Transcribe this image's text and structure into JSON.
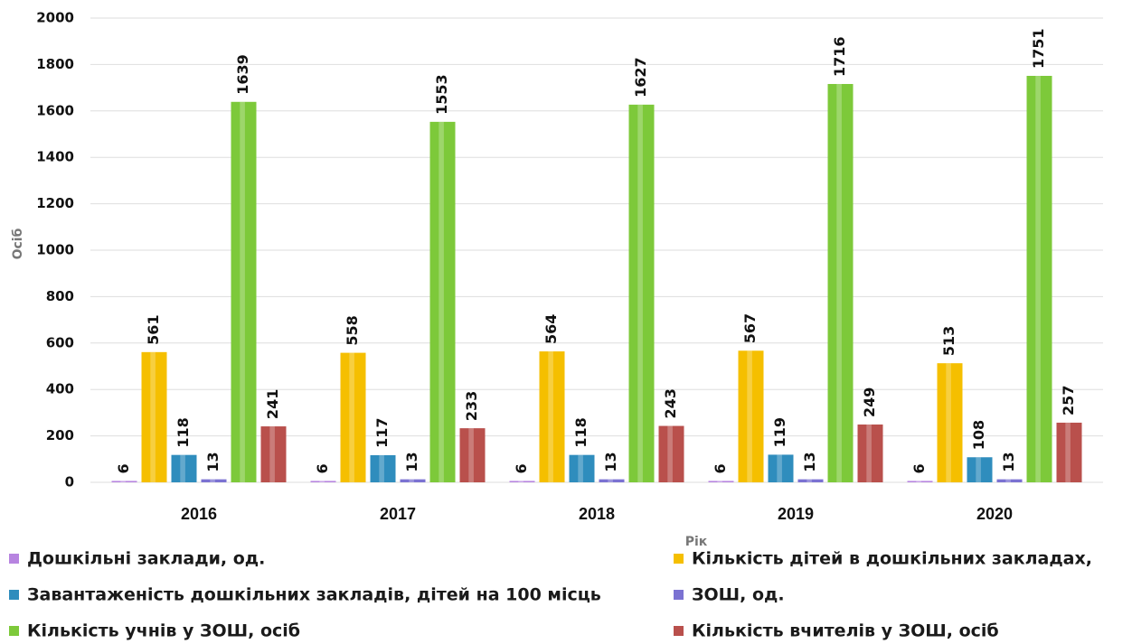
{
  "chart_data": {
    "type": "bar",
    "categories": [
      "2016",
      "2017",
      "2018",
      "2019",
      "2020"
    ],
    "y_label": "Осіб",
    "x_label": "Рік",
    "ylim": [
      0,
      2000
    ],
    "yticks": [
      0,
      200,
      400,
      600,
      800,
      1000,
      1200,
      1400,
      1600,
      1800,
      2000
    ],
    "grid": true,
    "series": [
      {
        "name": "Дошкільні заклади, од.",
        "color": "#b784e0",
        "values": [
          6,
          6,
          6,
          6,
          6
        ]
      },
      {
        "name": "Кількість дітей в дошкільних закладах,",
        "color": "#f5bf00",
        "values": [
          561,
          558,
          564,
          567,
          513
        ]
      },
      {
        "name": "Завантаженість дошкільних закладів, дітей на 100 місць",
        "color": "#2f8dbd",
        "values": [
          118,
          117,
          118,
          119,
          108
        ]
      },
      {
        "name": "ЗОШ, од.",
        "color": "#7b72d2",
        "values": [
          13,
          13,
          13,
          13,
          13
        ]
      },
      {
        "name": "Кількість учнів у ЗОШ, осіб",
        "color": "#7dc93a",
        "values": [
          1639,
          1553,
          1627,
          1716,
          1751
        ]
      },
      {
        "name": "Кількість вчителів у ЗОШ, осіб",
        "color": "#b9504c",
        "values": [
          241,
          233,
          243,
          249,
          257
        ]
      }
    ]
  }
}
